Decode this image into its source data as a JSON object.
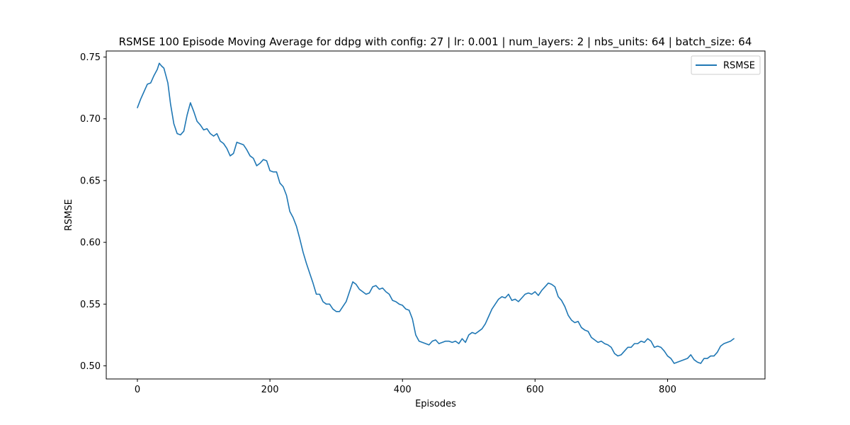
{
  "chart_data": {
    "type": "line",
    "title": "RSMSE 100 Episode Moving Average for ddpg with config: 27 | lr: 0.001 | num_layers: 2 | nbs_units: 64 | batch_size: 64",
    "xlabel": "Episodes",
    "ylabel": "RSMSE",
    "xlim": [
      -47,
      947
    ],
    "ylim": [
      0.4894,
      0.7549
    ],
    "xticks": [
      0,
      200,
      400,
      600,
      800
    ],
    "yticks": [
      0.5,
      0.55,
      0.6,
      0.65,
      0.7,
      0.75
    ],
    "xtick_labels": [
      "0",
      "200",
      "400",
      "600",
      "800"
    ],
    "ytick_labels": [
      "0.50",
      "0.55",
      "0.60",
      "0.65",
      "0.70",
      "0.75"
    ],
    "grid": false,
    "legend_position": "top-right",
    "line_color": "#1f77b4",
    "series": [
      {
        "name": "RSMSE",
        "x": [
          0,
          5,
          10,
          15,
          20,
          25,
          30,
          33,
          36,
          40,
          43,
          46,
          50,
          55,
          60,
          65,
          70,
          75,
          80,
          85,
          90,
          95,
          100,
          105,
          110,
          115,
          120,
          125,
          130,
          135,
          140,
          145,
          150,
          155,
          160,
          165,
          170,
          175,
          180,
          185,
          190,
          195,
          200,
          205,
          210,
          215,
          220,
          225,
          230,
          235,
          240,
          245,
          250,
          255,
          260,
          265,
          270,
          275,
          280,
          285,
          290,
          295,
          300,
          305,
          310,
          315,
          320,
          325,
          330,
          335,
          340,
          345,
          350,
          355,
          360,
          365,
          370,
          375,
          380,
          385,
          390,
          395,
          400,
          405,
          410,
          415,
          420,
          425,
          430,
          435,
          440,
          445,
          450,
          455,
          460,
          465,
          470,
          475,
          480,
          485,
          490,
          495,
          500,
          505,
          510,
          515,
          520,
          525,
          530,
          535,
          540,
          545,
          550,
          555,
          560,
          565,
          570,
          575,
          580,
          585,
          590,
          595,
          600,
          605,
          610,
          615,
          620,
          625,
          630,
          635,
          640,
          645,
          650,
          655,
          660,
          665,
          670,
          675,
          680,
          685,
          690,
          695,
          700,
          705,
          710,
          715,
          720,
          725,
          730,
          735,
          740,
          745,
          750,
          755,
          760,
          765,
          770,
          775,
          780,
          785,
          790,
          795,
          800,
          805,
          810,
          815,
          820,
          825,
          830,
          835,
          840,
          845,
          850,
          855,
          860,
          865,
          870,
          875,
          880,
          885,
          890,
          895,
          900
        ],
        "values": [
          0.709,
          0.716,
          0.722,
          0.728,
          0.729,
          0.735,
          0.74,
          0.745,
          0.743,
          0.741,
          0.735,
          0.729,
          0.712,
          0.696,
          0.688,
          0.687,
          0.69,
          0.703,
          0.713,
          0.706,
          0.698,
          0.695,
          0.691,
          0.692,
          0.688,
          0.686,
          0.688,
          0.682,
          0.68,
          0.676,
          0.67,
          0.672,
          0.681,
          0.68,
          0.679,
          0.675,
          0.67,
          0.668,
          0.662,
          0.664,
          0.667,
          0.666,
          0.658,
          0.657,
          0.657,
          0.648,
          0.645,
          0.638,
          0.625,
          0.62,
          0.613,
          0.603,
          0.592,
          0.583,
          0.575,
          0.567,
          0.558,
          0.558,
          0.552,
          0.55,
          0.55,
          0.546,
          0.544,
          0.544,
          0.548,
          0.552,
          0.56,
          0.568,
          0.566,
          0.562,
          0.56,
          0.558,
          0.559,
          0.564,
          0.565,
          0.562,
          0.563,
          0.56,
          0.558,
          0.553,
          0.552,
          0.55,
          0.549,
          0.546,
          0.545,
          0.538,
          0.525,
          0.52,
          0.519,
          0.518,
          0.517,
          0.52,
          0.521,
          0.518,
          0.519,
          0.52,
          0.52,
          0.519,
          0.52,
          0.518,
          0.522,
          0.519,
          0.525,
          0.527,
          0.526,
          0.528,
          0.53,
          0.534,
          0.54,
          0.546,
          0.55,
          0.554,
          0.556,
          0.555,
          0.558,
          0.553,
          0.554,
          0.552,
          0.555,
          0.558,
          0.559,
          0.558,
          0.56,
          0.557,
          0.561,
          0.564,
          0.567,
          0.566,
          0.564,
          0.556,
          0.553,
          0.548,
          0.541,
          0.537,
          0.535,
          0.536,
          0.531,
          0.529,
          0.528,
          0.523,
          0.521,
          0.519,
          0.52,
          0.518,
          0.517,
          0.515,
          0.51,
          0.508,
          0.509,
          0.512,
          0.515,
          0.515,
          0.518,
          0.518,
          0.52,
          0.519,
          0.522,
          0.52,
          0.515,
          0.516,
          0.515,
          0.512,
          0.508,
          0.506,
          0.502,
          0.503,
          0.504,
          0.505,
          0.506,
          0.509,
          0.505,
          0.503,
          0.502,
          0.506,
          0.506,
          0.508,
          0.508,
          0.511,
          0.516,
          0.518,
          0.519,
          0.52,
          0.522
        ]
      }
    ]
  }
}
